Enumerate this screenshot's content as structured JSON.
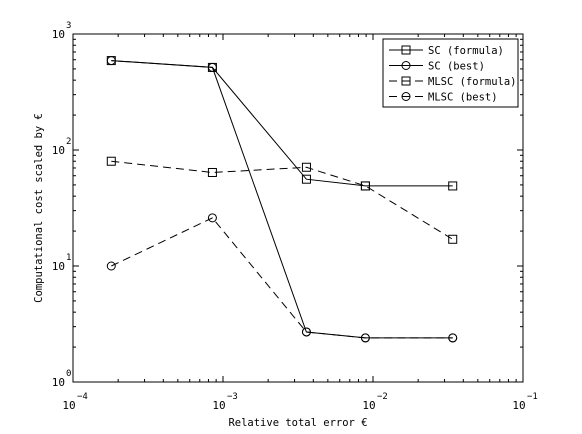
{
  "chart_data": {
    "type": "line",
    "xlabel": "Relative total error €",
    "ylabel": "Computational cost scaled by €",
    "xscale": "log",
    "yscale": "log",
    "xlim": [
      0.0001,
      0.1
    ],
    "ylim": [
      1,
      1000
    ],
    "x_ticks": [
      {
        "value": 0.0001,
        "base": "10",
        "exp": "−4"
      },
      {
        "value": 0.001,
        "base": "10",
        "exp": "−3"
      },
      {
        "value": 0.01,
        "base": "10",
        "exp": "−2"
      },
      {
        "value": 0.1,
        "base": "10",
        "exp": "−1"
      }
    ],
    "y_ticks": [
      {
        "value": 1,
        "base": "10",
        "exp": "0"
      },
      {
        "value": 10,
        "base": "10",
        "exp": "1"
      },
      {
        "value": 100,
        "base": "10",
        "exp": "2"
      },
      {
        "value": 1000,
        "base": "10",
        "exp": "3"
      }
    ],
    "grid": false,
    "legend_position": "top-right",
    "series": [
      {
        "name": "SC (formula)",
        "marker": "square",
        "dash": "solid",
        "x": [
          0.00018,
          0.00085,
          0.0036,
          0.0089,
          0.034
        ],
        "y": [
          590,
          515,
          56,
          49,
          49
        ]
      },
      {
        "name": "SC (best)",
        "marker": "circle",
        "dash": "solid",
        "x": [
          0.00018,
          0.00085,
          0.0036,
          0.0089,
          0.034
        ],
        "y": [
          590,
          515,
          2.7,
          2.4,
          2.4
        ]
      },
      {
        "name": "MLSC (formula)",
        "marker": "square",
        "dash": "dashed",
        "x": [
          0.00018,
          0.00085,
          0.0036,
          0.0089,
          0.034
        ],
        "y": [
          80,
          64,
          71,
          49,
          17
        ]
      },
      {
        "name": "MLSC (best)",
        "marker": "circle",
        "dash": "dashed",
        "x": [
          0.00018,
          0.00085,
          0.0036,
          0.0089,
          0.034
        ],
        "y": [
          10,
          26,
          2.7,
          2.4,
          2.4
        ]
      }
    ]
  }
}
